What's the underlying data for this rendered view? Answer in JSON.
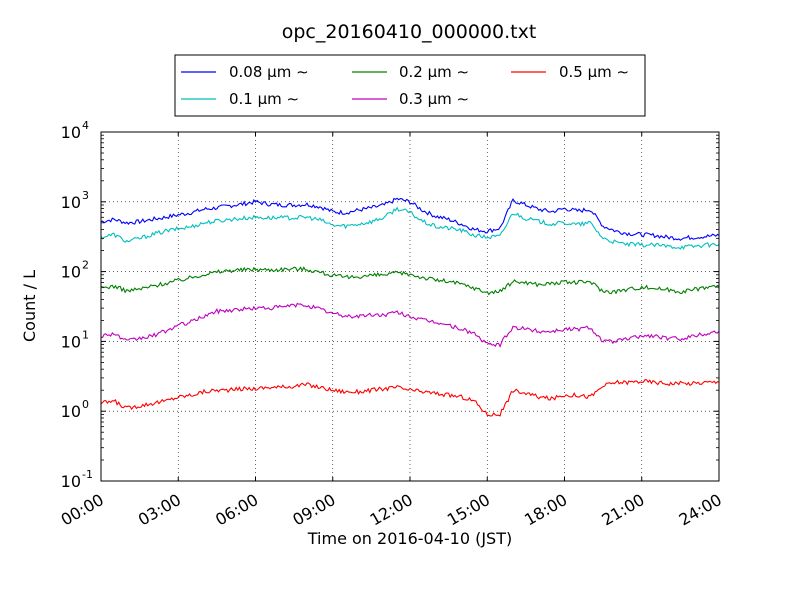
{
  "chart_data": {
    "type": "line",
    "title": "opc_20160410_000000.txt",
    "xlabel": "Time on 2016-04-10 (JST)",
    "ylabel": "Count / L",
    "yscale": "log",
    "ylim": [
      0.1,
      10000
    ],
    "xlim": [
      "2016-04-10 00:00",
      "2016-04-11 00:00"
    ],
    "grid": true,
    "legend_position": "top",
    "x_tick_labels": [
      "00:00",
      "03:00",
      "06:00",
      "09:00",
      "12:00",
      "15:00",
      "18:00",
      "21:00",
      "24:00"
    ],
    "y_tick_labels": [
      {
        "base": "10",
        "exp": "-1"
      },
      {
        "base": "10",
        "exp": "0"
      },
      {
        "base": "10",
        "exp": "1"
      },
      {
        "base": "10",
        "exp": "2"
      },
      {
        "base": "10",
        "exp": "3"
      },
      {
        "base": "10",
        "exp": "4"
      }
    ],
    "x": [
      "00:00",
      "00:30",
      "01:00",
      "01:30",
      "02:00",
      "02:30",
      "03:00",
      "03:30",
      "04:00",
      "04:30",
      "05:00",
      "05:30",
      "06:00",
      "06:30",
      "07:00",
      "07:30",
      "08:00",
      "08:30",
      "09:00",
      "09:30",
      "10:00",
      "10:30",
      "11:00",
      "11:30",
      "12:00",
      "12:30",
      "13:00",
      "13:30",
      "14:00",
      "14:30",
      "15:00",
      "15:30",
      "16:00",
      "16:30",
      "17:00",
      "17:30",
      "18:00",
      "18:30",
      "19:00",
      "19:30",
      "20:00",
      "20:30",
      "21:00",
      "21:30",
      "22:00",
      "22:30",
      "23:00",
      "23:30",
      "24:00"
    ],
    "series": [
      {
        "name": "0.08 μm ∼",
        "color": "#0000ff",
        "values": [
          520,
          560,
          500,
          520,
          560,
          600,
          650,
          700,
          780,
          820,
          880,
          930,
          1000,
          930,
          900,
          900,
          920,
          850,
          720,
          700,
          760,
          820,
          900,
          1100,
          1000,
          750,
          620,
          560,
          480,
          400,
          380,
          420,
          1050,
          900,
          780,
          720,
          800,
          740,
          780,
          450,
          380,
          350,
          340,
          330,
          310,
          300,
          310,
          320,
          330
        ]
      },
      {
        "name": "0.1 μm ∼",
        "color": "#00bfbf",
        "values": [
          310,
          340,
          270,
          300,
          340,
          380,
          410,
          440,
          500,
          530,
          560,
          580,
          600,
          590,
          590,
          590,
          600,
          550,
          460,
          450,
          480,
          520,
          600,
          800,
          700,
          520,
          440,
          420,
          390,
          330,
          310,
          320,
          700,
          580,
          520,
          480,
          500,
          470,
          500,
          300,
          260,
          245,
          240,
          240,
          230,
          225,
          230,
          240,
          245
        ]
      },
      {
        "name": "0.2 μm ∼",
        "color": "#008000",
        "values": [
          58,
          62,
          53,
          56,
          62,
          68,
          75,
          82,
          92,
          98,
          104,
          106,
          108,
          106,
          108,
          110,
          108,
          98,
          88,
          82,
          85,
          88,
          90,
          95,
          92,
          82,
          76,
          72,
          66,
          58,
          50,
          52,
          72,
          70,
          65,
          68,
          70,
          70,
          72,
          52,
          52,
          56,
          60,
          58,
          55,
          52,
          55,
          60,
          62
        ]
      },
      {
        "name": "0.3 μm ∼",
        "color": "#bf00bf",
        "values": [
          12,
          13,
          10,
          11,
          12,
          14,
          17,
          19,
          23,
          27,
          28,
          29,
          30,
          30,
          31,
          33,
          33,
          29,
          25,
          23,
          23,
          24,
          24,
          26,
          23,
          20,
          19,
          17,
          15,
          13,
          9,
          9,
          16,
          15,
          14,
          14,
          15,
          15,
          16,
          10,
          10,
          11,
          12,
          12,
          11,
          11,
          12,
          13,
          14
        ]
      },
      {
        "name": "0.5 μm ∼",
        "color": "#ff0000",
        "values": [
          1.3,
          1.4,
          1.1,
          1.2,
          1.3,
          1.4,
          1.6,
          1.7,
          1.9,
          2.0,
          2.0,
          2.1,
          2.1,
          2.2,
          2.2,
          2.3,
          2.4,
          2.2,
          2.0,
          1.9,
          1.9,
          2.0,
          2.1,
          2.2,
          2.0,
          1.9,
          1.8,
          1.7,
          1.6,
          1.4,
          0.9,
          0.9,
          2.0,
          1.8,
          1.6,
          1.5,
          1.7,
          1.7,
          1.6,
          2.3,
          2.6,
          2.6,
          2.7,
          2.6,
          2.5,
          2.5,
          2.5,
          2.6,
          2.6
        ]
      }
    ]
  }
}
